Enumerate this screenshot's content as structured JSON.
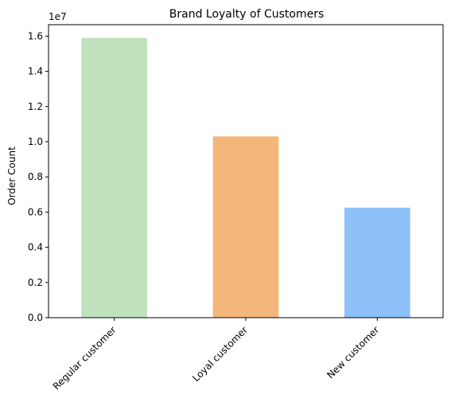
{
  "chart_data": {
    "type": "bar",
    "title": "Brand Loyalty of Customers",
    "xlabel": "",
    "ylabel": "Order Count",
    "y_multiplier_label": "1e7",
    "categories": [
      "Regular customer",
      "Loyal customer",
      "New customer"
    ],
    "values": [
      15900000,
      10300000,
      6250000
    ],
    "colors": [
      "#bfe1bc",
      "#f3b67b",
      "#8ec1f7"
    ],
    "ylim": [
      0,
      16650000
    ],
    "yticks": [
      0,
      2000000,
      4000000,
      6000000,
      8000000,
      10000000,
      12000000,
      14000000,
      16000000
    ],
    "ytick_labels": [
      "0.0",
      "0.2",
      "0.4",
      "0.6",
      "0.8",
      "1.0",
      "1.2",
      "1.4",
      "1.6"
    ],
    "grid": false,
    "legend": "none"
  }
}
